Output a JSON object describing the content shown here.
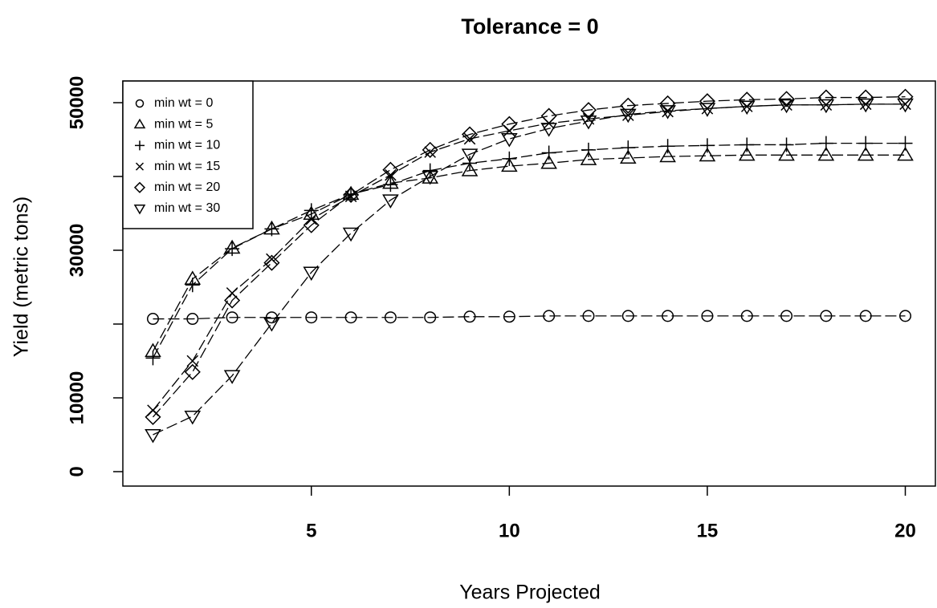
{
  "chart_data": {
    "type": "line",
    "title": "Tolerance =  0",
    "x_label": "Years Projected",
    "y_label": "Yield (metric tons)",
    "x": [
      1,
      2,
      3,
      4,
      5,
      6,
      7,
      8,
      9,
      10,
      11,
      12,
      13,
      14,
      15,
      16,
      17,
      18,
      19,
      20
    ],
    "xlim": [
      0.24,
      20.76
    ],
    "xticks": [
      5,
      10,
      15,
      20
    ],
    "ylim": [
      -1957,
      52935
    ],
    "yticks": [
      0,
      10000,
      {
        "value": 20000,
        "label": null
      },
      30000,
      {
        "value": 40000,
        "label": null
      },
      50000
    ],
    "legend": "top-left",
    "color": "#000000",
    "series": [
      {
        "name": "min wt =  0",
        "marker": "circle",
        "color": "#000000",
        "values": [
          20700,
          20700,
          20900,
          20900,
          20900,
          20900,
          20900,
          20900,
          21000,
          21000,
          21100,
          21100,
          21100,
          21100,
          21100,
          21100,
          21100,
          21100,
          21100,
          21100
        ]
      },
      {
        "name": "min wt =  5",
        "marker": "triangle",
        "color": "#000000",
        "values": [
          16300,
          26100,
          30300,
          32900,
          34900,
          37600,
          39100,
          39800,
          40800,
          41400,
          41800,
          42300,
          42500,
          42700,
          42800,
          42900,
          42900,
          42900,
          42900,
          42900
        ]
      },
      {
        "name": "min wt =  10",
        "marker": "plus",
        "color": "#000000",
        "values": [
          15400,
          25300,
          30200,
          32900,
          35400,
          37600,
          38900,
          40800,
          41800,
          42400,
          43200,
          43600,
          43900,
          44100,
          44200,
          44300,
          44300,
          44500,
          44500,
          44500
        ]
      },
      {
        "name": "min wt =  15",
        "marker": "cross",
        "color": "#000000",
        "values": [
          8300,
          15000,
          24200,
          28800,
          34200,
          37300,
          40200,
          43300,
          45100,
          46200,
          47200,
          47800,
          48300,
          48800,
          49200,
          49500,
          49700,
          49700,
          49800,
          49800
        ]
      },
      {
        "name": "min wt =  20",
        "marker": "diamond",
        "color": "#000000",
        "values": [
          7400,
          13500,
          23200,
          28300,
          33400,
          37500,
          40900,
          43600,
          45700,
          47100,
          48200,
          49000,
          49600,
          49900,
          50200,
          50400,
          50500,
          50700,
          50700,
          50800
        ]
      },
      {
        "name": "min wt =  30",
        "marker": "triangle-down",
        "color": "#000000",
        "values": [
          5000,
          7500,
          13000,
          20100,
          27000,
          32300,
          36800,
          40000,
          43000,
          45100,
          46500,
          47500,
          48400,
          48900,
          49200,
          49500,
          49700,
          49700,
          49800,
          49800
        ]
      }
    ]
  }
}
